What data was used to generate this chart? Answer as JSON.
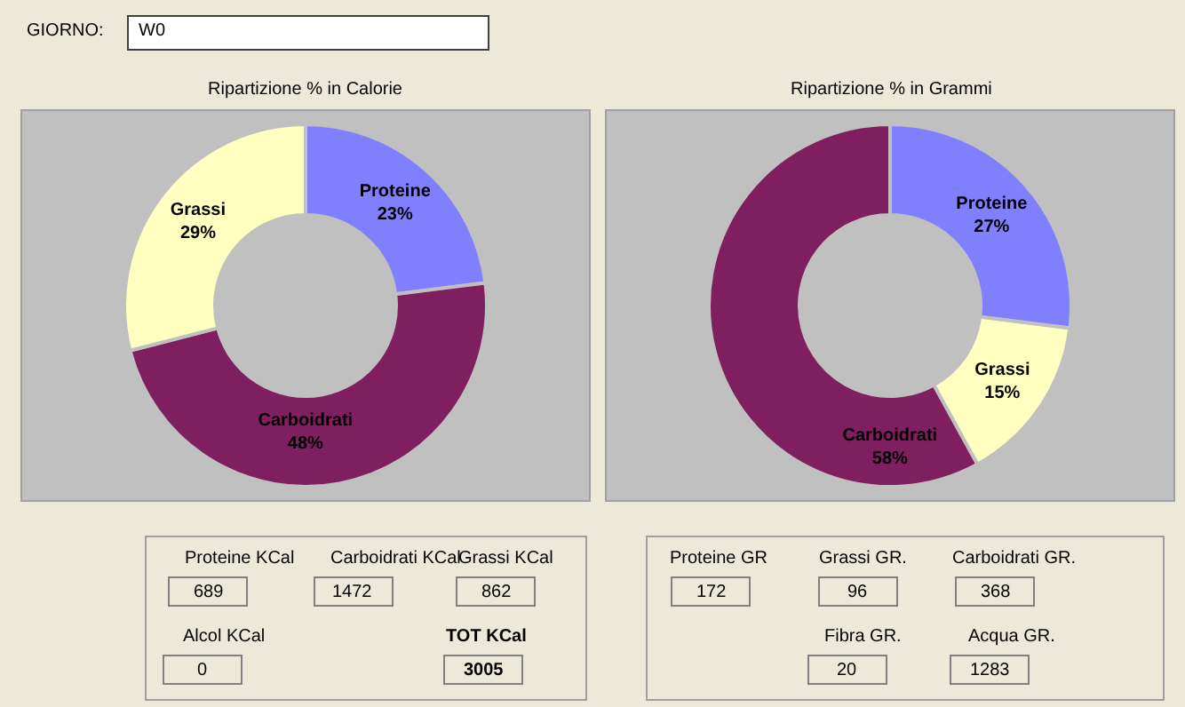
{
  "chart_data": [
    {
      "type": "other",
      "annotations": [
        "GIORNO:",
        "W0"
      ]
    },
    {
      "type": "donut",
      "title": "Ripartizione % in Calorie",
      "categories": [
        "Proteine",
        "Carboidrati",
        "Grassi"
      ],
      "values": [
        23,
        48,
        29
      ],
      "value_labels": [
        "23%",
        "48%",
        "29%"
      ],
      "colors": [
        "#8080ff",
        "#7f1f5f",
        "#ffffc0"
      ]
    },
    {
      "type": "donut",
      "title": "Ripartizione % in Grammi",
      "categories": [
        "Proteine",
        "Grassi",
        "Carboidrati"
      ],
      "values": [
        27,
        15,
        58
      ],
      "value_labels": [
        "27%",
        "15%",
        "58%"
      ],
      "colors": [
        "#8080ff",
        "#ffffc0",
        "#7f1f5f"
      ]
    },
    {
      "type": "other",
      "annotations": [
        "Proteine KCal",
        "689",
        "Carboidrati KCal",
        "1472",
        "Grassi KCal",
        "862",
        "Alcol KCal",
        "0",
        "TOT KCal",
        "3005"
      ]
    },
    {
      "type": "other",
      "annotations": [
        "Proteine GR",
        "172",
        "Grassi GR.",
        "96",
        "Carboidrati GR.",
        "368",
        "Fibra GR.",
        "20",
        "Acqua GR.",
        "1283"
      ]
    }
  ]
}
